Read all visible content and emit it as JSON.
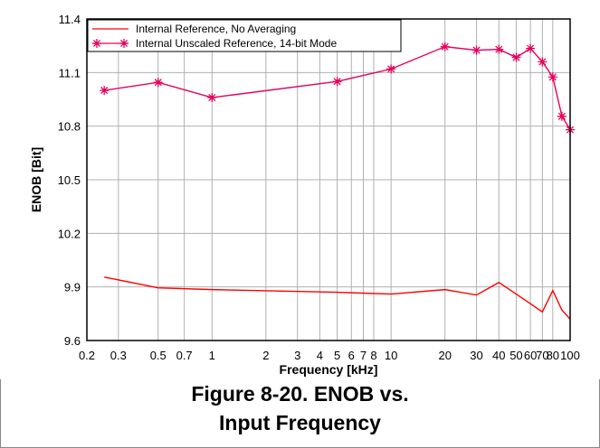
{
  "chart_data": {
    "type": "line",
    "xlabel": "Frequency [kHz]",
    "ylabel": "ENOB [Bit]",
    "xscale": "log",
    "xlim": [
      0.2,
      100
    ],
    "ylim": [
      9.6,
      11.4
    ],
    "x_ticks": [
      0.2,
      0.3,
      0.5,
      0.7,
      1,
      2,
      3,
      4,
      5,
      6,
      7,
      8,
      10,
      20,
      30,
      40,
      50,
      60,
      70,
      80,
      100
    ],
    "x_tick_labels": [
      "0.2",
      "0.3",
      "0.5",
      "0.7",
      "1",
      "2",
      "3",
      "4",
      "5",
      "6",
      "7",
      "8",
      "10",
      "20",
      "30",
      "40",
      "50",
      "60",
      "70",
      "80",
      "100"
    ],
    "y_ticks": [
      9.6,
      9.9,
      10.2,
      10.5,
      10.8,
      11.1,
      11.4
    ],
    "y_tick_labels": [
      "9.6",
      "9.9",
      "10.2",
      "10.5",
      "10.8",
      "11.1",
      "11.4"
    ],
    "grid": true,
    "legend_position": "top-left",
    "series": [
      {
        "name": "Internal Reference, No Averaging",
        "color": "#ff0000",
        "marker": "none",
        "x": [
          0.25,
          0.5,
          1,
          5,
          10,
          20,
          30,
          40,
          50,
          70,
          80,
          90,
          100
        ],
        "y": [
          9.955,
          9.895,
          9.885,
          9.87,
          9.86,
          9.885,
          9.855,
          9.925,
          9.86,
          9.76,
          9.88,
          9.77,
          9.72
        ]
      },
      {
        "name": "Internal Unscaled Reference, 14-bit Mode",
        "color": "#e6005c",
        "marker": "asterisk",
        "x": [
          0.25,
          0.5,
          1,
          5,
          10,
          20,
          30,
          40,
          50,
          60,
          70,
          80,
          90,
          100
        ],
        "y": [
          11.0,
          11.045,
          10.96,
          11.05,
          11.12,
          11.245,
          11.225,
          11.23,
          11.185,
          11.235,
          11.16,
          11.075,
          10.855,
          10.78
        ]
      }
    ]
  },
  "caption": {
    "line1": "Figure 8-20. ENOB vs.",
    "line2": "Input Frequency"
  }
}
